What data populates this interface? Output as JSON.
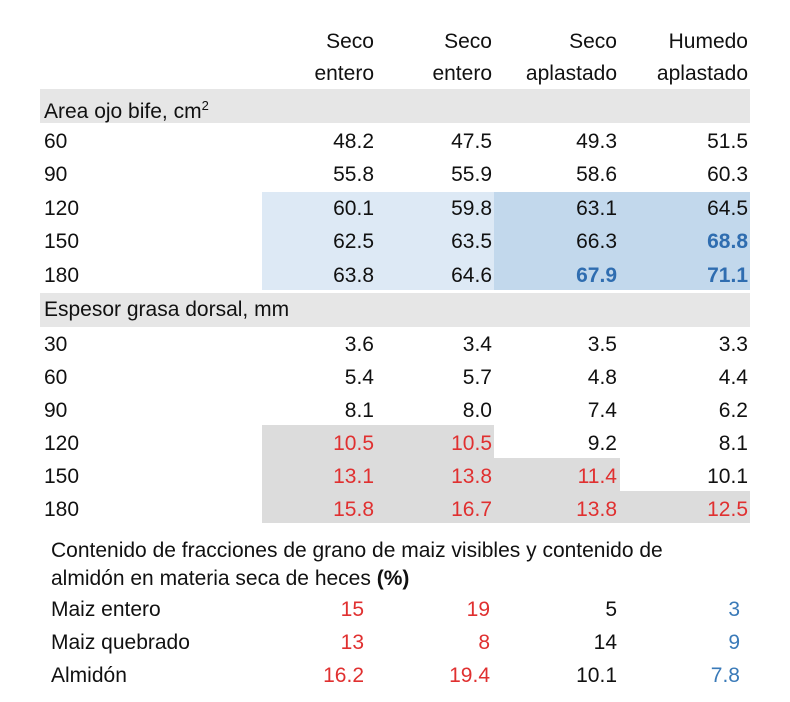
{
  "columns": [
    {
      "line1": "Seco",
      "line2": "entero"
    },
    {
      "line1": "Seco",
      "line2": "entero"
    },
    {
      "line1": "Seco",
      "line2": "aplastado"
    },
    {
      "line1": "Humedo",
      "line2": "aplastado"
    }
  ],
  "section1": {
    "title": "Area ojo bife, cm",
    "title_sup": "2",
    "rows": [
      {
        "label": "60",
        "values": [
          "48.2",
          "47.5",
          "49.3",
          "51.5"
        ]
      },
      {
        "label": "90",
        "values": [
          "55.8",
          "55.9",
          "58.6",
          "60.3"
        ]
      },
      {
        "label": "120",
        "values": [
          "60.1",
          "59.8",
          "63.1",
          "64.5"
        ]
      },
      {
        "label": "150",
        "values": [
          "62.5",
          "63.5",
          "66.3",
          "68.8"
        ]
      },
      {
        "label": "180",
        "values": [
          "63.8",
          "64.6",
          "67.9",
          "71.1"
        ]
      }
    ]
  },
  "section2": {
    "title": "Espesor grasa dorsal, mm",
    "rows": [
      {
        "label": "30",
        "values": [
          "3.6",
          "3.4",
          "3.5",
          "3.3"
        ]
      },
      {
        "label": "60",
        "values": [
          "5.4",
          "5.7",
          "4.8",
          "4.4"
        ]
      },
      {
        "label": "90",
        "values": [
          "8.1",
          "8.0",
          "7.4",
          "6.2"
        ]
      },
      {
        "label": "120",
        "values": [
          "10.5",
          "10.5",
          "9.2",
          "8.1"
        ]
      },
      {
        "label": "150",
        "values": [
          "13.1",
          "13.8",
          "11.4",
          "10.1"
        ]
      },
      {
        "label": "180",
        "values": [
          "15.8",
          "16.7",
          "13.8",
          "12.5"
        ]
      }
    ]
  },
  "section3": {
    "title_line1": "Contenido de fracciones de grano de maiz visibles y contenido de",
    "title_line2": "almidón en materia seca de heces",
    "title_pct": "(%)",
    "rows": [
      {
        "label": "Maiz entero",
        "values": [
          "15",
          "19",
          "5",
          "3"
        ]
      },
      {
        "label": "Maiz quebrado",
        "values": [
          "13",
          "8",
          "14",
          "9"
        ]
      },
      {
        "label": "Almidón",
        "values": [
          "16.2",
          "19.4",
          "10.1",
          "7.8"
        ]
      }
    ]
  },
  "colors": {
    "red": "#e03030",
    "blue": "#2f6db0",
    "light_blue": "#dde9f5",
    "mid_blue": "#c2d8ec",
    "gray_band": "#e6e6e6",
    "gray_cell": "#dcdcdc"
  }
}
